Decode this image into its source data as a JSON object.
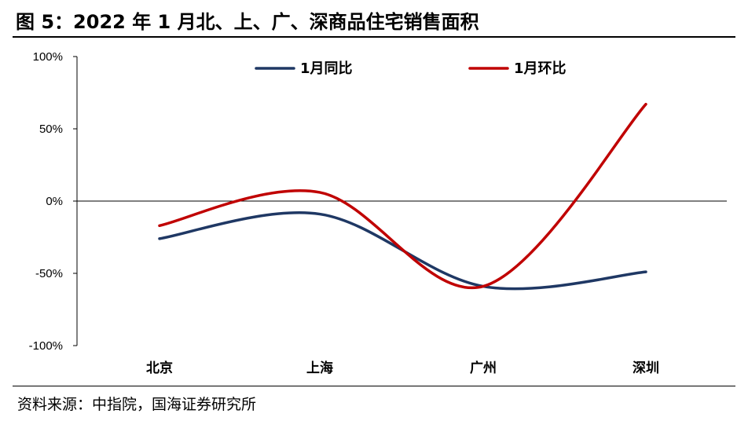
{
  "title": "图 5：2022 年 1 月北、上、广、深商品住宅销售面积",
  "source": "资料来源：中指院，国海证券研究所",
  "chart_data": {
    "type": "line",
    "categories": [
      "北京",
      "上海",
      "广州",
      "深圳"
    ],
    "series": [
      {
        "name": "1月同比",
        "color": "#1f3864",
        "values": [
          -26,
          -9,
          -59,
          -49
        ]
      },
      {
        "name": "1月环比",
        "color": "#c00000",
        "values": [
          -17,
          6,
          -59,
          67
        ]
      }
    ],
    "yticks": [
      "100%",
      "50%",
      "0%",
      "-50%",
      "-100%"
    ],
    "ylim": [
      -100,
      100
    ],
    "smooth": true,
    "legend_position": "top"
  }
}
